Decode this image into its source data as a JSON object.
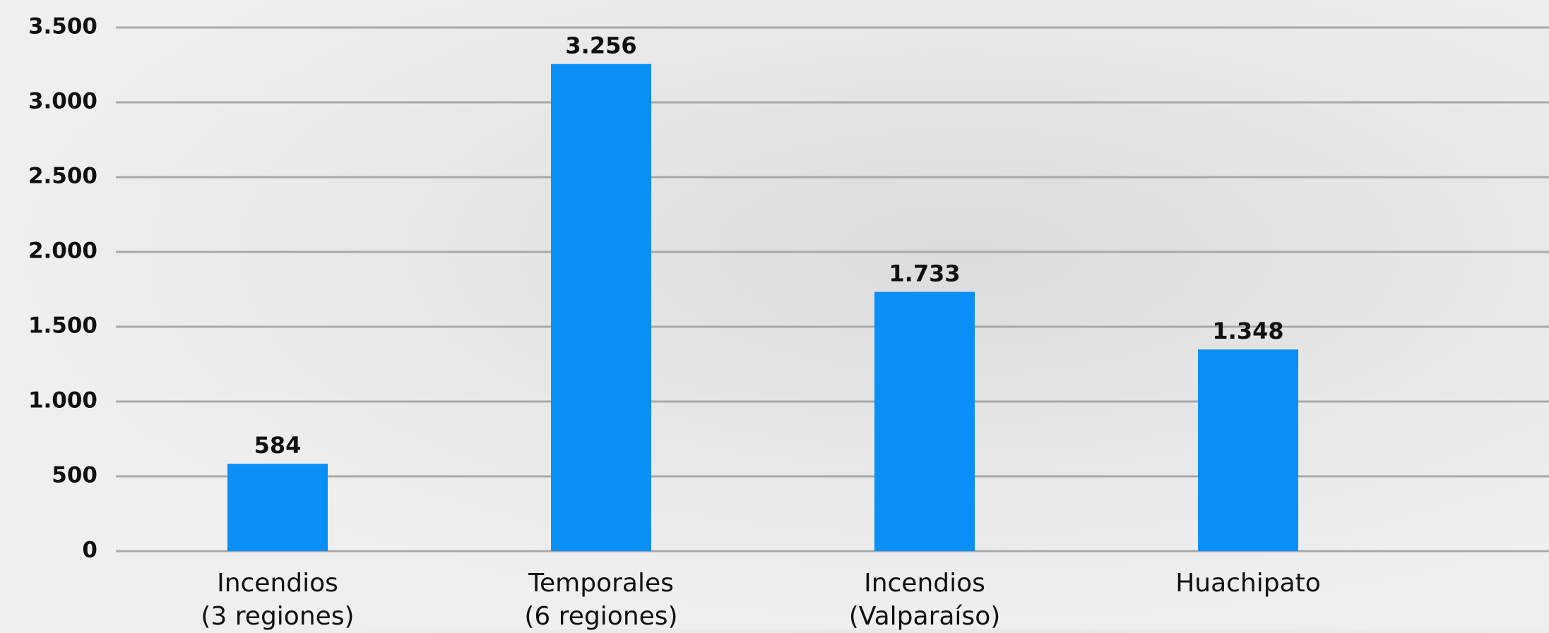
{
  "chart_data": {
    "type": "bar",
    "categories": [
      "Incendios\n(3 regiones)",
      "Temporales\n(6 regiones)",
      "Incendios\n(Valparaíso)",
      "Huachipato"
    ],
    "values": [
      584,
      3256,
      1733,
      1348
    ],
    "value_labels": [
      "584",
      "3.256",
      "1.733",
      "1.348"
    ],
    "color": "#0a8ff7",
    "ylim": [
      0,
      3500
    ],
    "yticks": [
      0,
      500,
      {
        "value": 1000,
        "label": "1.000"
      },
      {
        "value": 1500,
        "label": "1.500"
      },
      {
        "value": 2000,
        "label": "2.000"
      },
      {
        "value": 2500,
        "label": "2.500"
      },
      {
        "value": 3000,
        "label": "3.000"
      },
      {
        "value": 3500,
        "label": "3.500"
      }
    ],
    "grid": true
  }
}
